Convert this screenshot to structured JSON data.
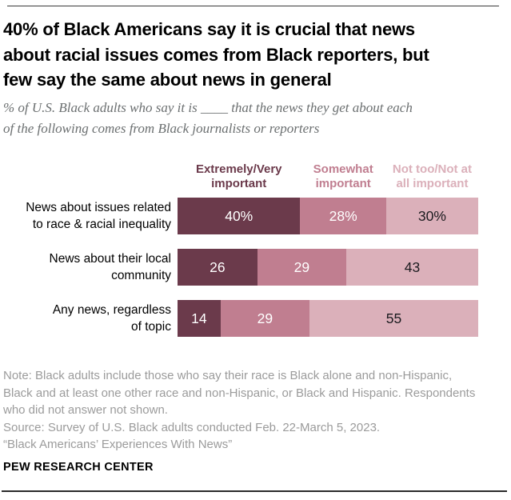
{
  "header": {
    "title_lines": [
      "40% of Black Americans say it is crucial that news",
      "about racial issues comes from Black reporters, but",
      "few say the same about news in general"
    ],
    "subtitle_lines": [
      "% of U.S. Black adults who say it is ____ that the news they get about each",
      "of the following comes from Black journalists or reporters"
    ]
  },
  "legend": {
    "items": [
      {
        "lines": [
          "Extremely/Very",
          "important"
        ]
      },
      {
        "lines": [
          "Somewhat",
          "important"
        ]
      },
      {
        "lines": [
          "Not too/Not at",
          "all important"
        ]
      }
    ]
  },
  "rows": [
    {
      "label_lines": [
        "News about issues related",
        "to race & racial inequality"
      ],
      "value_labels": [
        "40%",
        "28%",
        "30%"
      ]
    },
    {
      "label_lines": [
        "News about their local",
        "community"
      ],
      "value_labels": [
        "26",
        "29",
        "43"
      ]
    },
    {
      "label_lines": [
        "Any news, regardless",
        "of topic"
      ],
      "value_labels": [
        "14",
        "29",
        "55"
      ]
    }
  ],
  "chart_data": {
    "type": "bar",
    "stacked": true,
    "orientation": "horizontal",
    "title": "40% of Black Americans say it is crucial that news about racial issues comes from Black reporters, but few say the same about news in general",
    "subtitle": "% of U.S. Black adults who say it is ____ that the news they get about each of the following comes from Black journalists or reporters",
    "categories": [
      "News about issues related to race & racial inequality",
      "News about their local community",
      "Any news, regardless of topic"
    ],
    "series": [
      {
        "name": "Extremely/Very important",
        "color": "#6b3a4b",
        "values": [
          40,
          26,
          14
        ]
      },
      {
        "name": "Somewhat important",
        "color": "#c07e90",
        "values": [
          28,
          29,
          29
        ]
      },
      {
        "name": "Not too/Not at all important",
        "color": "#dbb0ba",
        "values": [
          30,
          43,
          55
        ]
      }
    ],
    "unit": "%",
    "legend_position": "top",
    "xlim": [
      0,
      98
    ]
  },
  "footer": {
    "note_lines": [
      "Note: Black adults include those who say their race is Black alone and non-Hispanic,",
      "Black and at least one other race and non-Hispanic, or Black and Hispanic. Respondents",
      "who did not answer not shown."
    ],
    "source": "Source: Survey of U.S. Black adults conducted Feb. 22-March 5, 2023.",
    "citation": "“Black Americans’ Experiences With News”",
    "brand": "PEW RESEARCH CENTER"
  }
}
